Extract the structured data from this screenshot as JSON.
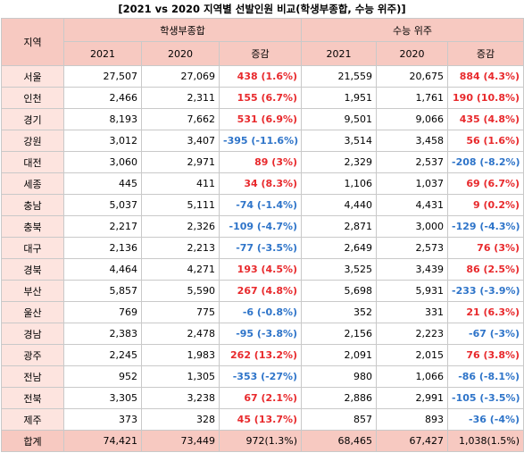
{
  "title": "[2021 vs 2020 지역별 선발인원 비교(학생부종합, 수능 위주)]",
  "headers": {
    "region": "지역",
    "group1": "학생부종합",
    "group2": "수능 위주",
    "col_2021": "2021",
    "col_2020": "2020",
    "col_change": "증감"
  },
  "colors": {
    "increase": "#e8292c",
    "decrease": "#2e74c9",
    "header_bg": "#f7c9c1",
    "region_bg": "#fde4df"
  },
  "rows": [
    {
      "region": "서울",
      "h2021": "27,507",
      "h2020": "27,069",
      "hchg": "438 (1.6%)",
      "hdir": "up",
      "s2021": "21,559",
      "s2020": "20,675",
      "schg": "884 (4.3%)",
      "sdir": "up"
    },
    {
      "region": "인천",
      "h2021": "2,466",
      "h2020": "2,311",
      "hchg": "155 (6.7%)",
      "hdir": "up",
      "s2021": "1,951",
      "s2020": "1,761",
      "schg": "190 (10.8%)",
      "sdir": "up"
    },
    {
      "region": "경기",
      "h2021": "8,193",
      "h2020": "7,662",
      "hchg": "531 (6.9%)",
      "hdir": "up",
      "s2021": "9,501",
      "s2020": "9,066",
      "schg": "435 (4.8%)",
      "sdir": "up"
    },
    {
      "region": "강원",
      "h2021": "3,012",
      "h2020": "3,407",
      "hchg": "-395 (-11.6%)",
      "hdir": "down",
      "s2021": "3,514",
      "s2020": "3,458",
      "schg": "56 (1.6%)",
      "sdir": "up"
    },
    {
      "region": "대전",
      "h2021": "3,060",
      "h2020": "2,971",
      "hchg": "89 (3%)",
      "hdir": "up",
      "s2021": "2,329",
      "s2020": "2,537",
      "schg": "-208 (-8.2%)",
      "sdir": "down"
    },
    {
      "region": "세종",
      "h2021": "445",
      "h2020": "411",
      "hchg": "34 (8.3%)",
      "hdir": "up",
      "s2021": "1,106",
      "s2020": "1,037",
      "schg": "69 (6.7%)",
      "sdir": "up"
    },
    {
      "region": "충남",
      "h2021": "5,037",
      "h2020": "5,111",
      "hchg": "-74 (-1.4%)",
      "hdir": "down",
      "s2021": "4,440",
      "s2020": "4,431",
      "schg": "9 (0.2%)",
      "sdir": "up"
    },
    {
      "region": "충북",
      "h2021": "2,217",
      "h2020": "2,326",
      "hchg": "-109 (-4.7%)",
      "hdir": "down",
      "s2021": "2,871",
      "s2020": "3,000",
      "schg": "-129 (-4.3%)",
      "sdir": "down"
    },
    {
      "region": "대구",
      "h2021": "2,136",
      "h2020": "2,213",
      "hchg": "-77 (-3.5%)",
      "hdir": "down",
      "s2021": "2,649",
      "s2020": "2,573",
      "schg": "76 (3%)",
      "sdir": "up"
    },
    {
      "region": "경북",
      "h2021": "4,464",
      "h2020": "4,271",
      "hchg": "193 (4.5%)",
      "hdir": "up",
      "s2021": "3,525",
      "s2020": "3,439",
      "schg": "86 (2.5%)",
      "sdir": "up"
    },
    {
      "region": "부산",
      "h2021": "5,857",
      "h2020": "5,590",
      "hchg": "267 (4.8%)",
      "hdir": "up",
      "s2021": "5,698",
      "s2020": "5,931",
      "schg": "-233 (-3.9%)",
      "sdir": "down"
    },
    {
      "region": "울산",
      "h2021": "769",
      "h2020": "775",
      "hchg": "-6 (-0.8%)",
      "hdir": "down",
      "s2021": "352",
      "s2020": "331",
      "schg": "21 (6.3%)",
      "sdir": "up"
    },
    {
      "region": "경남",
      "h2021": "2,383",
      "h2020": "2,478",
      "hchg": "-95 (-3.8%)",
      "hdir": "down",
      "s2021": "2,156",
      "s2020": "2,223",
      "schg": "-67 (-3%)",
      "sdir": "down"
    },
    {
      "region": "광주",
      "h2021": "2,245",
      "h2020": "1,983",
      "hchg": "262 (13.2%)",
      "hdir": "up",
      "s2021": "2,091",
      "s2020": "2,015",
      "schg": "76 (3.8%)",
      "sdir": "up"
    },
    {
      "region": "전남",
      "h2021": "952",
      "h2020": "1,305",
      "hchg": "-353 (-27%)",
      "hdir": "down",
      "s2021": "980",
      "s2020": "1,066",
      "schg": "-86 (-8.1%)",
      "sdir": "down"
    },
    {
      "region": "전북",
      "h2021": "3,305",
      "h2020": "3,238",
      "hchg": "67 (2.1%)",
      "hdir": "up",
      "s2021": "2,886",
      "s2020": "2,991",
      "schg": "-105 (-3.5%)",
      "sdir": "down"
    },
    {
      "region": "제주",
      "h2021": "373",
      "h2020": "328",
      "hchg": "45 (13.7%)",
      "hdir": "up",
      "s2021": "857",
      "s2020": "893",
      "schg": "-36 (-4%)",
      "sdir": "down"
    }
  ],
  "total": {
    "region": "합계",
    "h2021": "74,421",
    "h2020": "73,449",
    "hchg": "972(1.3%)",
    "s2021": "68,465",
    "s2020": "67,427",
    "schg": "1,038(1.5%)"
  }
}
